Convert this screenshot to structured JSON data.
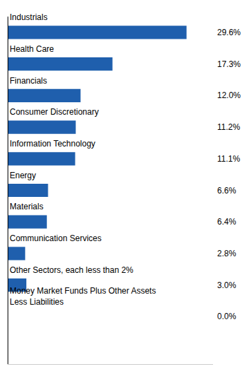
{
  "chart_data": {
    "type": "bar",
    "orientation": "horizontal",
    "categories": [
      "Money Market Funds Plus Other Assets\nLess Liabilities",
      "Other Sectors, each less than 2%",
      "Communication Services",
      "Materials",
      "Energy",
      "Information Technology",
      "Consumer Discretionary",
      "Financials",
      "Health Care",
      "Industrials"
    ],
    "values": [
      0.0,
      3.0,
      2.8,
      6.4,
      6.6,
      11.1,
      11.2,
      12.0,
      17.3,
      29.6
    ],
    "value_labels": [
      "0.0%",
      "3.0%",
      "2.8%",
      "6.4%",
      "6.6%",
      "11.1%",
      "11.2%",
      "12.0%",
      "17.3%",
      "29.6%"
    ],
    "color": "#1F5FAD",
    "xlim": [
      0,
      34
    ],
    "tick_labels": false,
    "grid": false
  }
}
